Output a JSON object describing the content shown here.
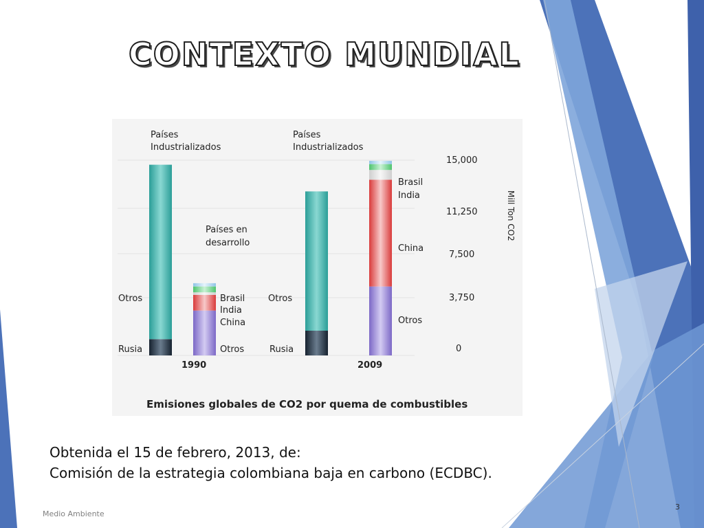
{
  "slide": {
    "title": "CONTEXTO MUNDIAL",
    "source_line1": "Obtenida el 15 de febrero, 2013, de:",
    "source_line2": "Comisión de la estrategia colombiana baja en carbono (ECDBC).",
    "footer": "Medio Ambiente",
    "page_number": "3"
  },
  "colors": {
    "accent_dark": "#3f64ad",
    "accent_mid": "#5b8ed0",
    "accent_light": "#b7cbe8",
    "teal": "#3fb3ad",
    "rusia": "#1f2f3f",
    "otros_dev": "#8f7fd0",
    "china": "#e04a4a",
    "india": "#dcdcdc",
    "brasil": "#5fcf7f"
  },
  "chart_data": {
    "type": "bar",
    "title": "Emisiones globales de CO2 por quema de combustibles",
    "ylabel": "Mill Ton CO2",
    "yticks": [
      "15,000",
      "11,250",
      "7,500",
      "3,750",
      "0"
    ],
    "ylim": [
      0,
      15000
    ],
    "categories": [
      "1990",
      "2009"
    ],
    "groups": {
      "industrialized": "Países Industrializados",
      "developing": "Países en desarrollo"
    },
    "bar_labels": {
      "otros": "Otros",
      "rusia": "Rusia",
      "brasil": "Brasil",
      "india": "India",
      "china": "China"
    },
    "industrialized": [
      {
        "year": "1990",
        "rusia": 1250,
        "otros": 13400
      },
      {
        "year": "2009",
        "rusia": 1900,
        "otros": 10700
      }
    ],
    "developing": [
      {
        "year": "1990",
        "otros": 3450,
        "china": 1200,
        "india": 200,
        "brasil": 450,
        "top": 250
      },
      {
        "year": "2009",
        "otros": 5300,
        "china": 8200,
        "india": 750,
        "brasil": 450,
        "top": 250
      }
    ]
  }
}
